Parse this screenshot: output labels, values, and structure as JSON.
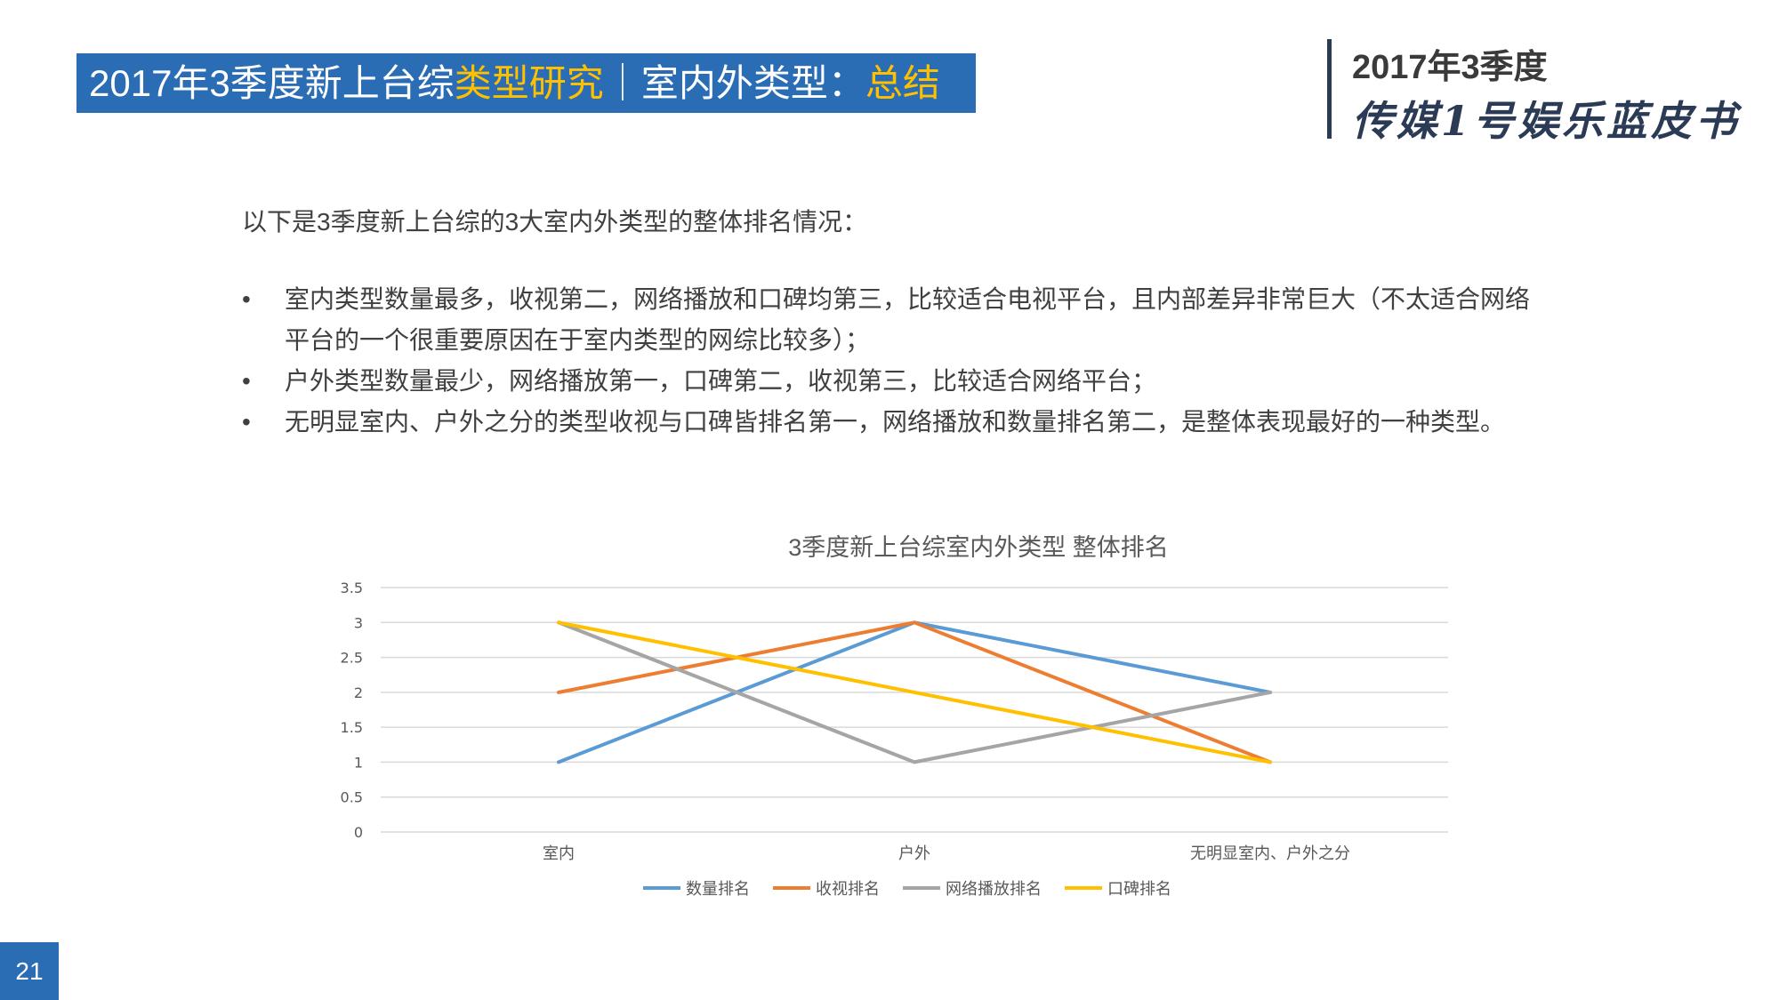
{
  "header": {
    "title_part1": "2017年3季度新上台综",
    "title_highlight1": "类型研究",
    "title_part2": "｜室内外类型：",
    "title_highlight2": "总结",
    "bar_color": "#2a6db5",
    "highlight_color": "#ffc000"
  },
  "brand": {
    "year": "2017年3季度",
    "name": "传媒1号娱乐蓝皮书"
  },
  "content": {
    "intro": "以下是3季度新上台综的3大室内外类型的整体排名情况：",
    "bullet_char": "•",
    "bullets": [
      "室内类型数量最多，收视第二，网络播放和口碑均第三，比较适合电视平台，且内部差异非常巨大（不太适合网络平台的一个很重要原因在于室内类型的网综比较多）；",
      "户外类型数量最少，网络播放第一，口碑第二，收视第三，比较适合网络平台；",
      "无明显室内、户外之分的类型收视与口碑皆排名第一，网络播放和数量排名第二，是整体表现最好的一种类型。"
    ]
  },
  "chart_data": {
    "type": "line",
    "title": "3季度新上台综室内外类型 整体排名",
    "categories": [
      "室内",
      "户外",
      "无明显室内、户外之分"
    ],
    "ylim": [
      0,
      3.5
    ],
    "yticks": [
      "0",
      "0.5",
      "1",
      "1.5",
      "2",
      "2.5",
      "3",
      "3.5"
    ],
    "grid": true,
    "legend_position": "bottom",
    "series": [
      {
        "name": "数量排名",
        "values": [
          1,
          3,
          2
        ],
        "color": "#5b9bd5"
      },
      {
        "name": "收视排名",
        "values": [
          2,
          3,
          1
        ],
        "color": "#ed7d31"
      },
      {
        "name": "网络播放排名",
        "values": [
          3,
          1,
          2
        ],
        "color": "#a5a5a5"
      },
      {
        "name": "口碑排名",
        "values": [
          3,
          2,
          1
        ],
        "color": "#ffc000"
      }
    ]
  },
  "page_number": "21"
}
